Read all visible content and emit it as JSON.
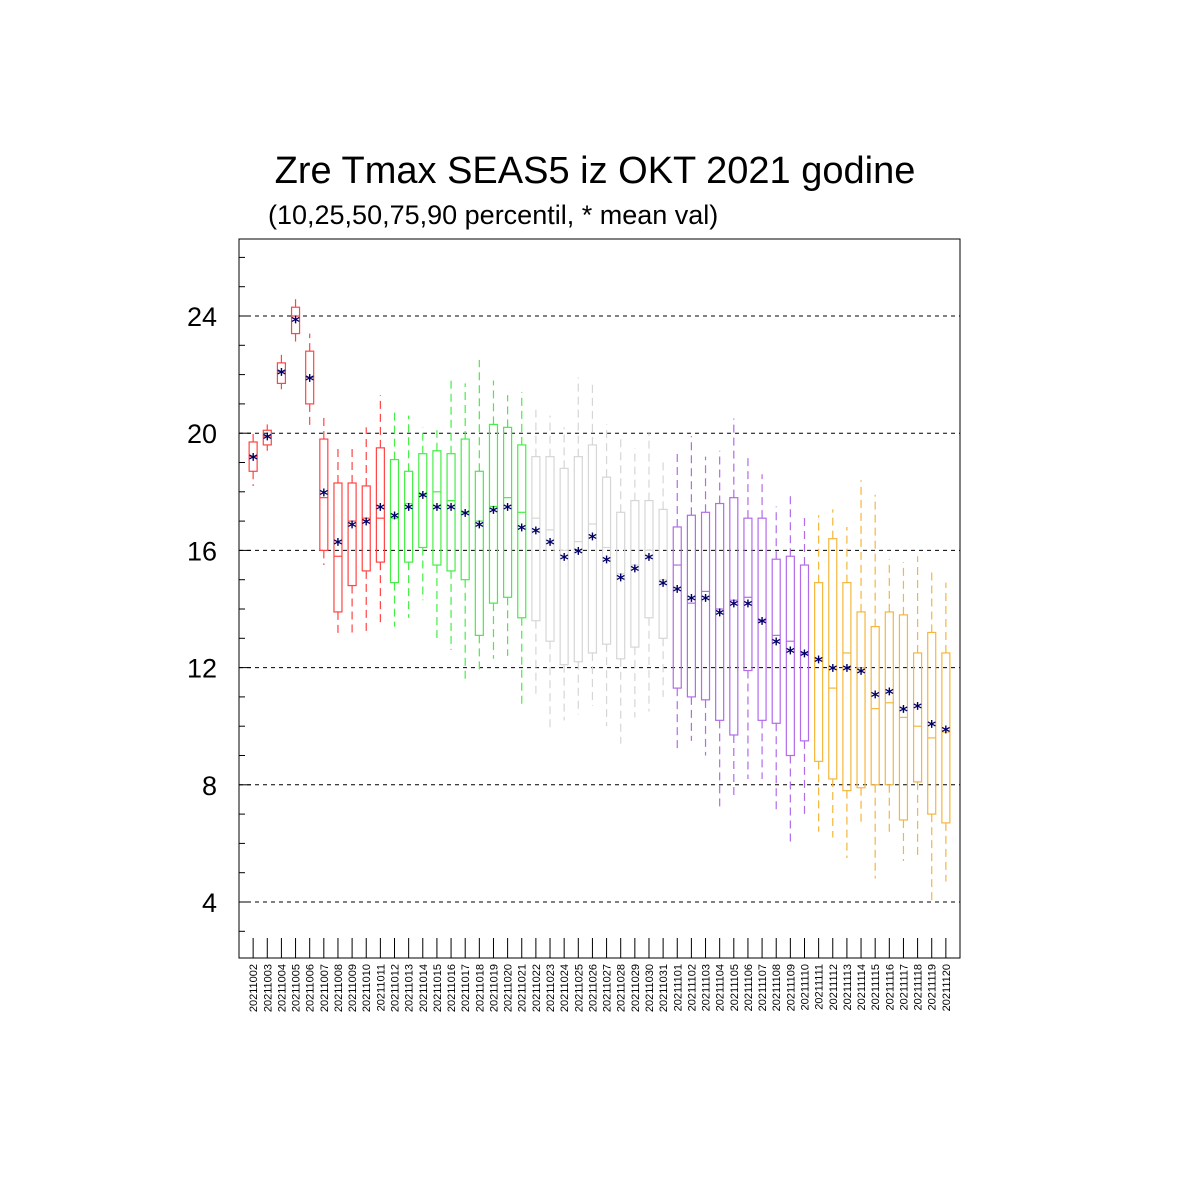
{
  "title": "Zre Tmax SEAS5 iz OKT 2021 godine",
  "subtitle": "(10,25,50,75,90 percentil, * mean val)",
  "chart_data": {
    "type": "box",
    "ylim": [
      2,
      26.5
    ],
    "yticks": [
      4,
      8,
      12,
      16,
      20,
      24
    ],
    "grid": "horizontal dashed at major ticks",
    "period_colors": {
      "oct_early": "#ff4444",
      "oct_mid": "#44ee44",
      "oct_late": "#d6d6d6",
      "nov_early": "#b36be8",
      "nov_late": "#f5b63c"
    },
    "mean_marker_color": "#000066",
    "boxes": [
      {
        "date": "20211002",
        "group": "oct_early",
        "p10": 18.2,
        "p25": 18.7,
        "p50": 19.2,
        "p75": 19.7,
        "p90": 20.0,
        "mean": 19.2
      },
      {
        "date": "20211003",
        "group": "oct_early",
        "p10": 19.4,
        "p25": 19.6,
        "p50": 19.9,
        "p75": 20.1,
        "p90": 20.3,
        "mean": 19.9
      },
      {
        "date": "20211004",
        "group": "oct_early",
        "p10": 21.5,
        "p25": 21.7,
        "p50": 22.1,
        "p75": 22.4,
        "p90": 22.8,
        "mean": 22.1
      },
      {
        "date": "20211005",
        "group": "oct_early",
        "p10": 23.0,
        "p25": 23.4,
        "p50": 24.0,
        "p75": 24.3,
        "p90": 24.6,
        "mean": 23.9
      },
      {
        "date": "20211006",
        "group": "oct_early",
        "p10": 20.2,
        "p25": 21.0,
        "p50": 21.9,
        "p75": 22.8,
        "p90": 23.4,
        "mean": 21.9
      },
      {
        "date": "20211007",
        "group": "oct_early",
        "p10": 15.5,
        "p25": 16.0,
        "p50": 17.8,
        "p75": 19.8,
        "p90": 20.6,
        "mean": 18.0
      },
      {
        "date": "20211008",
        "group": "oct_early",
        "p10": 13.1,
        "p25": 13.9,
        "p50": 15.8,
        "p75": 18.3,
        "p90": 19.5,
        "mean": 16.3
      },
      {
        "date": "20211009",
        "group": "oct_early",
        "p10": 13.2,
        "p25": 14.8,
        "p50": 17.0,
        "p75": 18.3,
        "p90": 19.5,
        "mean": 16.9
      },
      {
        "date": "20211010",
        "group": "oct_early",
        "p10": 13.2,
        "p25": 15.3,
        "p50": 17.1,
        "p75": 18.2,
        "p90": 20.2,
        "mean": 17.0
      },
      {
        "date": "20211011",
        "group": "oct_early",
        "p10": 13.5,
        "p25": 15.6,
        "p50": 17.1,
        "p75": 19.5,
        "p90": 21.3,
        "mean": 17.5
      },
      {
        "date": "20211012",
        "group": "oct_mid",
        "p10": 13.4,
        "p25": 14.9,
        "p50": 17.1,
        "p75": 19.1,
        "p90": 20.8,
        "mean": 17.2
      },
      {
        "date": "20211013",
        "group": "oct_mid",
        "p10": 13.7,
        "p25": 15.6,
        "p50": 17.6,
        "p75": 18.7,
        "p90": 20.6,
        "mean": 17.5
      },
      {
        "date": "20211014",
        "group": "oct_mid",
        "p10": 14.3,
        "p25": 16.1,
        "p50": 17.9,
        "p75": 19.3,
        "p90": 20.2,
        "mean": 17.9
      },
      {
        "date": "20211015",
        "group": "oct_mid",
        "p10": 12.9,
        "p25": 15.5,
        "p50": 18.0,
        "p75": 19.4,
        "p90": 20.1,
        "mean": 17.5
      },
      {
        "date": "20211016",
        "group": "oct_mid",
        "p10": 12.6,
        "p25": 15.3,
        "p50": 17.7,
        "p75": 19.3,
        "p90": 21.8,
        "mean": 17.5
      },
      {
        "date": "20211017",
        "group": "oct_mid",
        "p10": 11.5,
        "p25": 15.0,
        "p50": 17.3,
        "p75": 19.8,
        "p90": 21.7,
        "mean": 17.3
      },
      {
        "date": "20211018",
        "group": "oct_mid",
        "p10": 11.9,
        "p25": 13.1,
        "p50": 17.0,
        "p75": 18.7,
        "p90": 22.5,
        "mean": 16.9
      },
      {
        "date": "20211019",
        "group": "oct_mid",
        "p10": 12.3,
        "p25": 14.2,
        "p50": 17.5,
        "p75": 20.3,
        "p90": 21.8,
        "mean": 17.4
      },
      {
        "date": "20211020",
        "group": "oct_mid",
        "p10": 12.4,
        "p25": 14.4,
        "p50": 17.8,
        "p75": 20.2,
        "p90": 21.3,
        "mean": 17.5
      },
      {
        "date": "20211021",
        "group": "oct_mid",
        "p10": 10.6,
        "p25": 13.7,
        "p50": 17.3,
        "p75": 19.6,
        "p90": 21.4,
        "mean": 16.8
      },
      {
        "date": "20211022",
        "group": "oct_late",
        "p10": 11.0,
        "p25": 13.6,
        "p50": 17.1,
        "p75": 19.2,
        "p90": 20.8,
        "mean": 16.7
      },
      {
        "date": "20211023",
        "group": "oct_late",
        "p10": 9.8,
        "p25": 12.9,
        "p50": 16.7,
        "p75": 19.2,
        "p90": 20.6,
        "mean": 16.3
      },
      {
        "date": "20211024",
        "group": "oct_late",
        "p10": 10.2,
        "p25": 12.1,
        "p50": 16.0,
        "p75": 18.8,
        "p90": 20.2,
        "mean": 15.8
      },
      {
        "date": "20211025",
        "group": "oct_late",
        "p10": 10.4,
        "p25": 12.2,
        "p50": 16.3,
        "p75": 19.2,
        "p90": 21.9,
        "mean": 16.0
      },
      {
        "date": "20211026",
        "group": "oct_late",
        "p10": 10.7,
        "p25": 12.5,
        "p50": 16.9,
        "p75": 19.6,
        "p90": 21.8,
        "mean": 16.5
      },
      {
        "date": "20211027",
        "group": "oct_late",
        "p10": 10.0,
        "p25": 12.8,
        "p50": 16.1,
        "p75": 18.5,
        "p90": 20.3,
        "mean": 15.7
      },
      {
        "date": "20211028",
        "group": "oct_late",
        "p10": 9.4,
        "p25": 12.3,
        "p50": 15.2,
        "p75": 17.3,
        "p90": 19.8,
        "mean": 15.1
      },
      {
        "date": "20211029",
        "group": "oct_late",
        "p10": 10.3,
        "p25": 12.7,
        "p50": 15.5,
        "p75": 17.7,
        "p90": 19.5,
        "mean": 15.4
      },
      {
        "date": "20211030",
        "group": "oct_late",
        "p10": 10.5,
        "p25": 13.7,
        "p50": 16.0,
        "p75": 17.7,
        "p90": 20.0,
        "mean": 15.8
      },
      {
        "date": "20211031",
        "group": "oct_late",
        "p10": 11.0,
        "p25": 13.0,
        "p50": 15.0,
        "p75": 17.4,
        "p90": 19.1,
        "mean": 14.9
      },
      {
        "date": "20211101",
        "group": "nov_early",
        "p10": 9.2,
        "p25": 11.3,
        "p50": 15.5,
        "p75": 16.8,
        "p90": 19.4,
        "mean": 14.7
      },
      {
        "date": "20211102",
        "group": "nov_early",
        "p10": 9.5,
        "p25": 11.0,
        "p50": 14.2,
        "p75": 17.2,
        "p90": 19.9,
        "mean": 14.4
      },
      {
        "date": "20211103",
        "group": "nov_early",
        "p10": 9.0,
        "p25": 10.9,
        "p50": 14.6,
        "p75": 17.3,
        "p90": 19.2,
        "mean": 14.4
      },
      {
        "date": "20211104",
        "group": "nov_early",
        "p10": 7.2,
        "p25": 10.2,
        "p50": 14.0,
        "p75": 17.6,
        "p90": 19.4,
        "mean": 13.9
      },
      {
        "date": "20211105",
        "group": "nov_early",
        "p10": 7.5,
        "p25": 9.7,
        "p50": 14.3,
        "p75": 17.8,
        "p90": 20.5,
        "mean": 14.2
      },
      {
        "date": "20211106",
        "group": "nov_early",
        "p10": 8.2,
        "p25": 11.9,
        "p50": 14.4,
        "p75": 17.1,
        "p90": 19.2,
        "mean": 14.2
      },
      {
        "date": "20211107",
        "group": "nov_early",
        "p10": 8.2,
        "p25": 10.2,
        "p50": 13.6,
        "p75": 17.1,
        "p90": 18.6,
        "mean": 13.6
      },
      {
        "date": "20211108",
        "group": "nov_early",
        "p10": 7.0,
        "p25": 10.1,
        "p50": 13.1,
        "p75": 15.7,
        "p90": 17.5,
        "mean": 12.9
      },
      {
        "date": "20211109",
        "group": "nov_early",
        "p10": 5.9,
        "p25": 9.0,
        "p50": 12.9,
        "p75": 15.8,
        "p90": 17.9,
        "mean": 12.6
      },
      {
        "date": "20211110",
        "group": "nov_early",
        "p10": 6.9,
        "p25": 9.5,
        "p50": 12.5,
        "p75": 15.5,
        "p90": 17.2,
        "mean": 12.5
      },
      {
        "date": "20211111",
        "group": "nov_late",
        "p10": 6.4,
        "p25": 8.8,
        "p50": 12.3,
        "p75": 14.9,
        "p90": 17.2,
        "mean": 12.3
      },
      {
        "date": "20211112",
        "group": "nov_late",
        "p10": 6.2,
        "p25": 8.2,
        "p50": 11.3,
        "p75": 16.4,
        "p90": 17.4,
        "mean": 12.0
      },
      {
        "date": "20211113",
        "group": "nov_late",
        "p10": 5.5,
        "p25": 7.8,
        "p50": 12.5,
        "p75": 14.9,
        "p90": 16.8,
        "mean": 12.0
      },
      {
        "date": "20211114",
        "group": "nov_late",
        "p10": 6.6,
        "p25": 7.9,
        "p50": 12.0,
        "p75": 13.9,
        "p90": 18.4,
        "mean": 11.9
      },
      {
        "date": "20211115",
        "group": "nov_late",
        "p10": 4.8,
        "p25": 8.0,
        "p50": 10.6,
        "p75": 13.4,
        "p90": 17.9,
        "mean": 11.1
      },
      {
        "date": "20211116",
        "group": "nov_late",
        "p10": 6.3,
        "p25": 8.0,
        "p50": 10.8,
        "p75": 13.9,
        "p90": 15.7,
        "mean": 11.2
      },
      {
        "date": "20211117",
        "group": "nov_late",
        "p10": 5.4,
        "p25": 6.8,
        "p50": 10.3,
        "p75": 13.8,
        "p90": 15.6,
        "mean": 10.6
      },
      {
        "date": "20211118",
        "group": "nov_late",
        "p10": 5.6,
        "p25": 8.1,
        "p50": 10.0,
        "p75": 12.5,
        "p90": 15.8,
        "mean": 10.7
      },
      {
        "date": "20211119",
        "group": "nov_late",
        "p10": 4.0,
        "p25": 7.0,
        "p50": 9.6,
        "p75": 13.2,
        "p90": 15.3,
        "mean": 10.1
      },
      {
        "date": "20211120",
        "group": "nov_late",
        "p10": 4.7,
        "p25": 6.7,
        "p50": 9.8,
        "p75": 12.5,
        "p90": 14.9,
        "mean": 9.9
      }
    ]
  }
}
